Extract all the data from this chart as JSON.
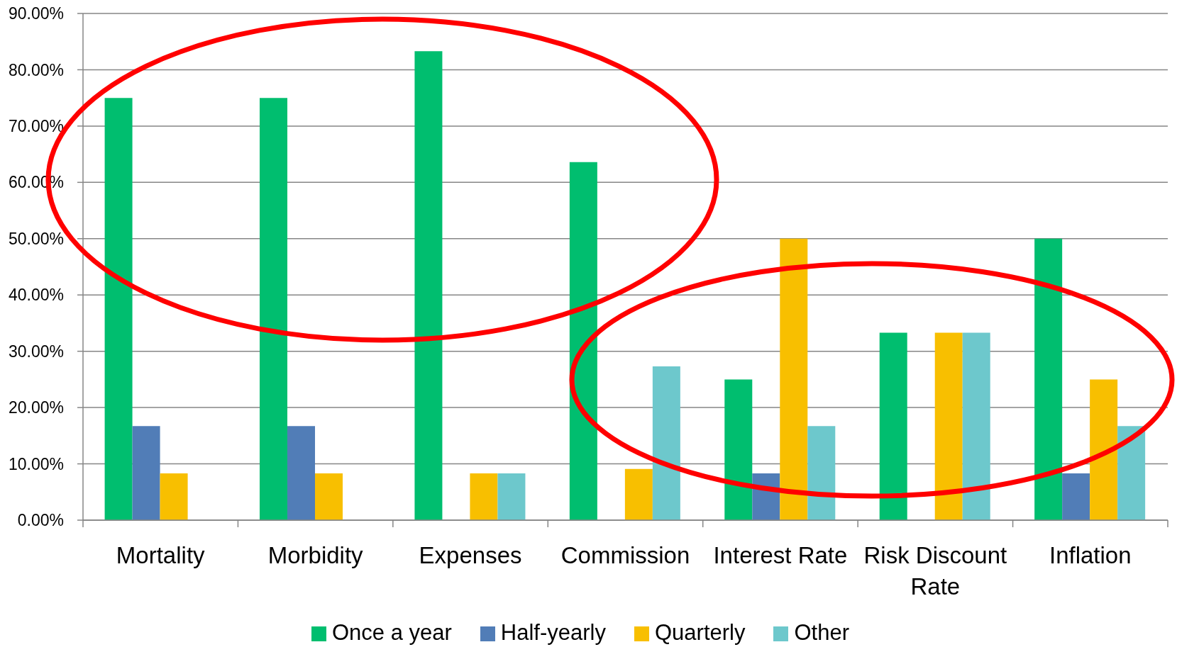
{
  "chart_data": {
    "type": "bar",
    "categories": [
      "Mortality",
      "Morbidity",
      "Expenses",
      "Commission",
      "Interest Rate",
      "Risk Discount Rate",
      "Inflation"
    ],
    "series": [
      {
        "name": "Once a year",
        "color": "#00be6f",
        "values": [
          75,
          75,
          83.3,
          63.6,
          25,
          33.3,
          50
        ]
      },
      {
        "name": "Half-yearly",
        "color": "#517db7",
        "values": [
          16.7,
          16.7,
          null,
          null,
          8.3,
          null,
          8.3
        ]
      },
      {
        "name": "Quarterly",
        "color": "#f8bf00",
        "values": [
          8.3,
          8.3,
          8.3,
          9.1,
          50,
          33.3,
          25
        ]
      },
      {
        "name": "Other",
        "color": "#6dc8cc",
        "values": [
          null,
          null,
          8.3,
          27.3,
          16.7,
          33.3,
          16.7
        ]
      }
    ],
    "ylim": [
      0,
      90
    ],
    "yticks": [
      {
        "value": 0,
        "label": "0.00%"
      },
      {
        "value": 10,
        "label": "10.00%"
      },
      {
        "value": 20,
        "label": "20.00%"
      },
      {
        "value": 30,
        "label": "30.00%"
      },
      {
        "value": 40,
        "label": "40.00%"
      },
      {
        "value": 50,
        "label": "50.00%"
      },
      {
        "value": 60,
        "label": "60.00%"
      },
      {
        "value": 70,
        "label": "70.00%"
      },
      {
        "value": 80,
        "label": "80.00%"
      },
      {
        "value": 90,
        "label": "90.00%"
      }
    ],
    "grid": "y",
    "legend": "bottom"
  }
}
